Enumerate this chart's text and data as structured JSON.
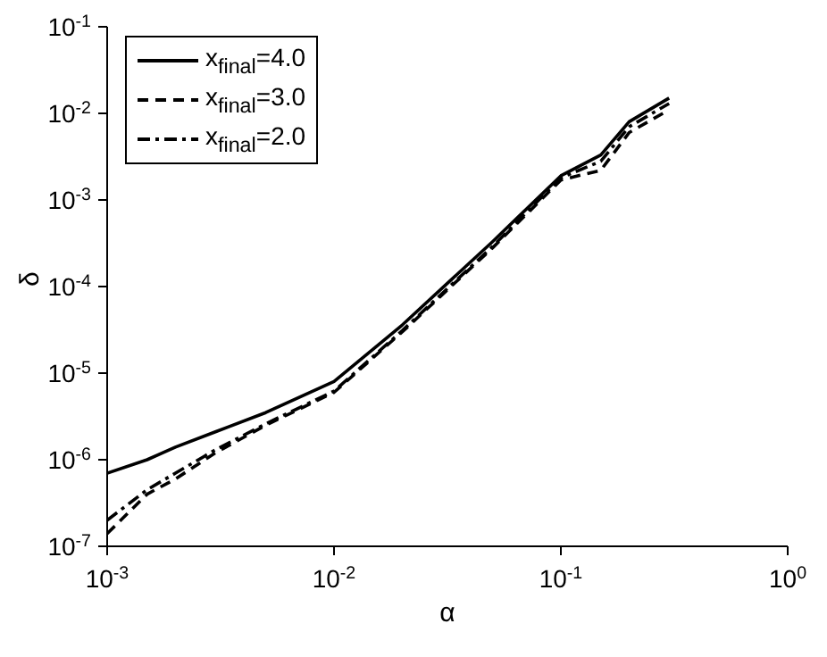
{
  "chart_data": {
    "type": "line",
    "xlabel": "α",
    "ylabel": "δ",
    "log": "xy",
    "grid": false,
    "legend": "top left",
    "marker": "none",
    "xlim": [
      0.001,
      1
    ],
    "ylim": [
      1e-07,
      0.1
    ],
    "xticks": [
      {
        "value": 0.001,
        "label": "10$^{-3}$"
      },
      {
        "value": 0.01,
        "label": "10$^{-2}$"
      },
      {
        "value": 0.1,
        "label": "10$^{-1}$"
      },
      {
        "value": 1,
        "label": "10$^{0}$"
      }
    ],
    "yticks": [
      {
        "value": 1e-07,
        "label": "10$^{-7}$"
      },
      {
        "value": 1e-06,
        "label": "10$^{-6}$"
      },
      {
        "value": 1e-05,
        "label": "10$^{-5}$"
      },
      {
        "value": 0.0001,
        "label": "10$^{-4}$"
      },
      {
        "value": 0.001,
        "label": "10$^{-3}$"
      },
      {
        "value": 0.01,
        "label": "10$^{-2}$"
      },
      {
        "value": 0.1,
        "label": "10$^{-1}$"
      }
    ],
    "x": [
      0.001,
      0.0015,
      0.002,
      0.003,
      0.005,
      0.01,
      0.02,
      0.05,
      0.1,
      0.15,
      0.2,
      0.3
    ],
    "series": [
      {
        "name": "x$_{final}$=4.0",
        "color": "#000000",
        "line_style": "solid",
        "values": [
          7e-07,
          1e-06,
          1.4e-06,
          2.1e-06,
          3.5e-06,
          8e-06,
          3.6e-05,
          0.00033,
          0.0019,
          0.0033,
          0.008,
          0.015
        ]
      },
      {
        "name": "x$_{final}$=3.0",
        "color": "#000000",
        "line_style": "dashed",
        "values": [
          1.4e-07,
          4e-07,
          6e-07,
          1.2e-06,
          2.5e-06,
          6e-06,
          3e-05,
          0.00028,
          0.0017,
          0.0022,
          0.006,
          0.011
        ]
      },
      {
        "name": "x$_{final}$=2.0",
        "color": "#000000",
        "line_style": "dashdot",
        "values": [
          2e-07,
          4.5e-07,
          7e-07,
          1.3e-06,
          2.6e-06,
          6.2e-06,
          3.1e-05,
          0.00029,
          0.0018,
          0.0028,
          0.007,
          0.013
        ]
      }
    ]
  }
}
